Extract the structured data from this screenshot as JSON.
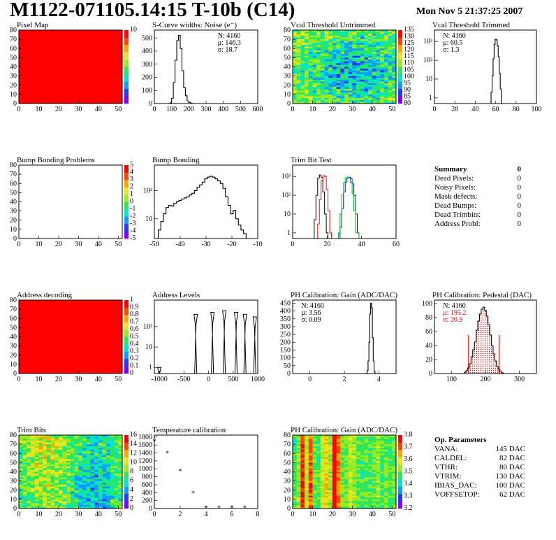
{
  "header": {
    "title": "M1122-071105.14:15 T-10b (C14)",
    "timestamp": "Mon Nov  5 21:37:25 2007"
  },
  "summary": {
    "title": "Summary",
    "total": "0",
    "rows": [
      {
        "label": "Dead Pixels:",
        "value": "0"
      },
      {
        "label": "Noisy Pixels:",
        "value": "0"
      },
      {
        "label": "Mask defects:",
        "value": "0"
      },
      {
        "label": "Dead Bumps:",
        "value": "0"
      },
      {
        "label": "Dead Trimbits:",
        "value": "0"
      },
      {
        "label": "Address Probl:",
        "value": "0"
      }
    ]
  },
  "op_params": {
    "title": "Op. Parameters",
    "rows": [
      {
        "label": "VANA:",
        "value": "145 DAC"
      },
      {
        "label": "CALDEL:",
        "value": "82 DAC"
      },
      {
        "label": "VTHR:",
        "value": "80 DAC"
      },
      {
        "label": "VTRIM:",
        "value": "130 DAC"
      },
      {
        "label": "IBIAS_DAC:",
        "value": "100 DAC"
      },
      {
        "label": "VOFFSETOP:",
        "value": "62 DAC"
      }
    ]
  },
  "colors": {
    "palette": [
      "#7f00ff",
      "#2a35ff",
      "#0f9bff",
      "#00e6c8",
      "#2ee65a",
      "#9aea22",
      "#e6e61e",
      "#ffa500",
      "#ff4500",
      "#ff0000"
    ],
    "red": "#ff0000",
    "green": "#00c000",
    "blue": "#0000ff",
    "line": "#000000"
  },
  "chart_data": [
    {
      "id": "pixel_map",
      "type": "heatmap",
      "title": "Pixel Map",
      "xlim": [
        0,
        52
      ],
      "ylim": [
        0,
        80
      ],
      "xticks": [
        "0",
        "10",
        "20",
        "30",
        "40",
        "50"
      ],
      "yticks": [
        "0",
        "10",
        "20",
        "30",
        "40",
        "50",
        "60",
        "70",
        "80"
      ],
      "fill": "uniform-max",
      "zlim": [
        0,
        10
      ],
      "zticks": [
        "10"
      ]
    },
    {
      "id": "noise",
      "type": "histogram",
      "title": "S-Curve widths: Noise (e⁻)",
      "xlim": [
        0,
        600
      ],
      "ylim": [
        0,
        560
      ],
      "xticks": [
        "0",
        "100",
        "200",
        "300",
        "400",
        "500",
        "600"
      ],
      "yticks": [
        "0",
        "100",
        "200",
        "300",
        "400",
        "500"
      ],
      "stats": [
        "N: 4160",
        "μ: 146.3",
        "σ: 18.7"
      ],
      "x": [
        95,
        105,
        115,
        125,
        135,
        145,
        155,
        165,
        175,
        185,
        195,
        205,
        215
      ],
      "y": [
        5,
        40,
        160,
        330,
        480,
        520,
        420,
        250,
        120,
        60,
        20,
        8,
        2
      ]
    },
    {
      "id": "vcal_untrimmed",
      "type": "heatmap",
      "title": "Vcal Threshold Untrimmed",
      "xlim": [
        0,
        52
      ],
      "ylim": [
        0,
        80
      ],
      "xticks": [
        "0",
        "10",
        "20",
        "30",
        "40",
        "50"
      ],
      "yticks": [
        "0",
        "10",
        "20",
        "30",
        "40",
        "50",
        "60",
        "70",
        "80"
      ],
      "fill": "noise-blue-center",
      "zlim": [
        80,
        135
      ],
      "zticks": [
        "80",
        "85",
        "90",
        "95",
        "100",
        "105",
        "110",
        "115",
        "120",
        "125",
        "130",
        "135"
      ]
    },
    {
      "id": "vcal_trimmed",
      "type": "histogram",
      "title": "Vcal Threshold Trimmed",
      "log": true,
      "xlim": [
        0,
        100
      ],
      "ylim": [
        0.5,
        4000
      ],
      "xticks": [
        "0",
        "20",
        "40",
        "60",
        "80",
        "100"
      ],
      "yticks": [
        "1",
        "10",
        "10²",
        "10³"
      ],
      "stats": [
        "N: 4160",
        "μ: 60.5",
        "σ:  1.3"
      ],
      "x": [
        56,
        57,
        58,
        59,
        60,
        61,
        62,
        63,
        64,
        65
      ],
      "y": [
        2,
        15,
        120,
        700,
        1300,
        1200,
        600,
        150,
        20,
        3
      ]
    },
    {
      "id": "bump_problems",
      "type": "heatmap",
      "title": "Bump Bonding Problems",
      "xlim": [
        0,
        52
      ],
      "ylim": [
        0,
        80
      ],
      "xticks": [
        "0",
        "10",
        "20",
        "30",
        "40",
        "50"
      ],
      "yticks": [
        "0",
        "10",
        "20",
        "30",
        "40",
        "50",
        "60",
        "70",
        "80"
      ],
      "fill": "empty",
      "zlim": [
        -5,
        5
      ],
      "zticks": [
        "-5",
        "-4",
        "-3",
        "-2",
        "-1",
        "0",
        "1",
        "2",
        "3",
        "4",
        "5"
      ]
    },
    {
      "id": "bump_bonding",
      "type": "histogram",
      "title": "Bump Bonding",
      "log": true,
      "xlim": [
        -50,
        -10
      ],
      "ylim": [
        2,
        800
      ],
      "xticks": [
        "-50",
        "-40",
        "-30",
        "-20",
        "-10"
      ],
      "yticks": [
        "10",
        "10²"
      ],
      "x": [
        -48,
        -47,
        -46,
        -45,
        -44,
        -43,
        -42,
        -41,
        -40,
        -39,
        -38,
        -37,
        -36,
        -35,
        -34,
        -33,
        -32,
        -31,
        -30,
        -29,
        -28,
        -27,
        -26,
        -25,
        -24,
        -23,
        -22,
        -21,
        -20,
        -19,
        -18,
        -17,
        -16,
        -15,
        -14
      ],
      "y": [
        4,
        8,
        15,
        25,
        30,
        28,
        35,
        40,
        45,
        50,
        55,
        60,
        70,
        80,
        100,
        130,
        160,
        200,
        260,
        300,
        320,
        300,
        260,
        220,
        180,
        120,
        60,
        30,
        15,
        20,
        10,
        6,
        4,
        3,
        2
      ]
    },
    {
      "id": "trim_bit_test",
      "type": "histogram",
      "title": "Trim Bit Test",
      "log": true,
      "xlim": [
        0,
        60
      ],
      "ylim": [
        0.5,
        4000
      ],
      "xticks": [
        "0",
        "20",
        "40",
        "60"
      ],
      "yticks": [
        "1",
        "10",
        "10²",
        "10³"
      ],
      "series": [
        {
          "color": "black",
          "x": [
            13,
            14,
            15,
            16,
            17,
            18,
            19,
            20
          ],
          "y": [
            5,
            100,
            800,
            1200,
            900,
            150,
            10,
            1
          ]
        },
        {
          "color": "red",
          "x": [
            15,
            16,
            17,
            18,
            19,
            20,
            21,
            22
          ],
          "y": [
            3,
            60,
            600,
            1100,
            1000,
            200,
            15,
            1
          ]
        },
        {
          "color": "blue",
          "x": [
            28,
            29,
            30,
            31,
            32,
            33,
            34,
            35,
            36,
            37,
            38
          ],
          "y": [
            2,
            20,
            150,
            500,
            800,
            900,
            750,
            400,
            100,
            10,
            1
          ]
        },
        {
          "color": "green",
          "x": [
            27,
            28,
            29,
            30,
            31,
            32,
            33,
            34,
            35,
            36,
            37,
            38
          ],
          "y": [
            1,
            10,
            100,
            450,
            820,
            920,
            800,
            450,
            120,
            15,
            1,
            1
          ]
        }
      ]
    },
    {
      "id": "address_decoding",
      "type": "heatmap",
      "title": "Address decoding",
      "xlim": [
        0,
        52
      ],
      "ylim": [
        0,
        80
      ],
      "xticks": [
        "0",
        "10",
        "20",
        "30",
        "40",
        "50"
      ],
      "yticks": [
        "0",
        "10",
        "20",
        "30",
        "40",
        "50",
        "60",
        "70",
        "80"
      ],
      "fill": "uniform-max",
      "zlim": [
        0,
        1
      ],
      "zticks": [
        "0",
        "0.1",
        "0.2",
        "0.3",
        "0.4",
        "0.5",
        "0.6",
        "0.7",
        "0.8",
        "0.9",
        "1"
      ]
    },
    {
      "id": "address_levels",
      "type": "histogram",
      "title": "Address Levels",
      "log": true,
      "xlim": [
        -1100,
        1000
      ],
      "ylim": [
        0.5,
        2000
      ],
      "xticks": [
        "-1000",
        "-500",
        "0",
        "500",
        "1000"
      ],
      "yticks": [
        "1",
        "10",
        "10²"
      ],
      "peaks": [
        -1000,
        -260,
        80,
        320,
        560,
        740,
        940
      ],
      "peak_heights": [
        1,
        400,
        500,
        600,
        500,
        400,
        300
      ]
    },
    {
      "id": "ph_gain",
      "type": "histogram",
      "title": "PH Calibration: Gain (ADC/DAC)",
      "xlim": [
        -1,
        5
      ],
      "ylim": [
        0,
        470
      ],
      "xticks": [
        "0",
        "2",
        "4"
      ],
      "yticks": [
        "0",
        "50",
        "100",
        "150",
        "200",
        "250",
        "300",
        "350",
        "400",
        "450"
      ],
      "stats": [
        "N: 4160",
        "μ: 3.56",
        "σ: 0.09"
      ],
      "x": [
        3.3,
        3.35,
        3.4,
        3.45,
        3.5,
        3.55,
        3.6,
        3.65,
        3.7,
        3.75,
        3.8
      ],
      "y": [
        2,
        20,
        80,
        200,
        380,
        450,
        420,
        230,
        80,
        15,
        2
      ]
    },
    {
      "id": "ph_pedestal",
      "type": "histogram",
      "title": "PH Calibration: Pedestal (DAC)",
      "xlim": [
        50,
        350
      ],
      "ylim": [
        0,
        105
      ],
      "xticks": [
        "100",
        "200",
        "300"
      ],
      "yticks": [
        "0",
        "20",
        "40",
        "60",
        "80",
        "100"
      ],
      "stats": [
        "N: 4160",
        "μ: 195.2",
        "σ: 20.9"
      ],
      "x": [
        140,
        145,
        150,
        155,
        160,
        165,
        170,
        175,
        180,
        185,
        190,
        195,
        200,
        205,
        210,
        215,
        220,
        225,
        230,
        235,
        240,
        245,
        250
      ],
      "y": [
        2,
        4,
        8,
        14,
        24,
        34,
        45,
        62,
        75,
        85,
        92,
        95,
        90,
        82,
        70,
        55,
        40,
        28,
        18,
        10,
        6,
        3,
        1
      ],
      "cut_lines": [
        150,
        240
      ]
    },
    {
      "id": "trim_bits",
      "type": "heatmap",
      "title": "Trim Bits",
      "xlim": [
        0,
        52
      ],
      "ylim": [
        0,
        80
      ],
      "xticks": [
        "0",
        "10",
        "20",
        "30",
        "40",
        "50"
      ],
      "yticks": [
        "0",
        "10",
        "20",
        "30",
        "40",
        "50",
        "60",
        "70",
        "80"
      ],
      "fill": "noise-green",
      "zlim": [
        0,
        16
      ],
      "zticks": [
        "0",
        "2",
        "4",
        "6",
        "8",
        "10",
        "12",
        "14",
        "16"
      ]
    },
    {
      "id": "temperature",
      "type": "scatter",
      "title": "Temperature calibration",
      "xlim": [
        0,
        8
      ],
      "ylim": [
        0,
        1850
      ],
      "xticks": [
        "0",
        "2",
        "4",
        "6",
        "8"
      ],
      "yticks": [
        "0",
        "200",
        "400",
        "600",
        "800",
        "1000",
        "1200",
        "1400",
        "1600",
        "1800"
      ],
      "x": [
        0,
        1,
        2,
        3,
        4,
        5,
        6,
        7
      ],
      "y": [
        1700,
        1400,
        950,
        400,
        30,
        30,
        30,
        30
      ]
    },
    {
      "id": "ph_gain_map",
      "type": "heatmap",
      "title": "PH Calibration: Gain (ADC/DAC)",
      "xlim": [
        0,
        52
      ],
      "ylim": [
        0,
        80
      ],
      "xticks": [
        "0",
        "10",
        "20",
        "30",
        "40",
        "50"
      ],
      "yticks": [
        "0",
        "10",
        "20",
        "30",
        "40",
        "50",
        "60",
        "70",
        "80"
      ],
      "fill": "stripes",
      "zlim": [
        3.2,
        3.8
      ],
      "zticks": [
        "3.2",
        "3.3",
        "3.4",
        "3.5",
        "3.6",
        "3.7",
        "3.8"
      ]
    }
  ]
}
